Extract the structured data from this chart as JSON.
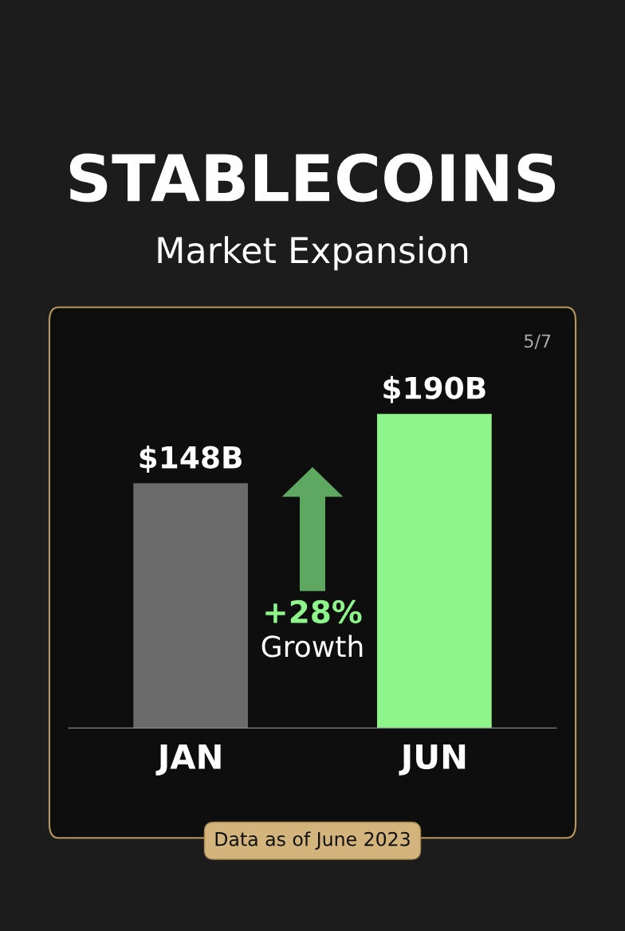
{
  "chart_data": {
    "type": "bar",
    "title": "STABLECOINS",
    "subtitle": "Market Expansion",
    "categories": [
      "JAN",
      "JUN"
    ],
    "values": [
      148,
      190
    ],
    "colors": [
      "#6b6b6b",
      "#8ef58a"
    ],
    "value_labels": [
      "$148B",
      "$190B"
    ],
    "annotations": [
      "+28%",
      "Growth",
      "5/7",
      "Data as of June 2023"
    ]
  }
}
